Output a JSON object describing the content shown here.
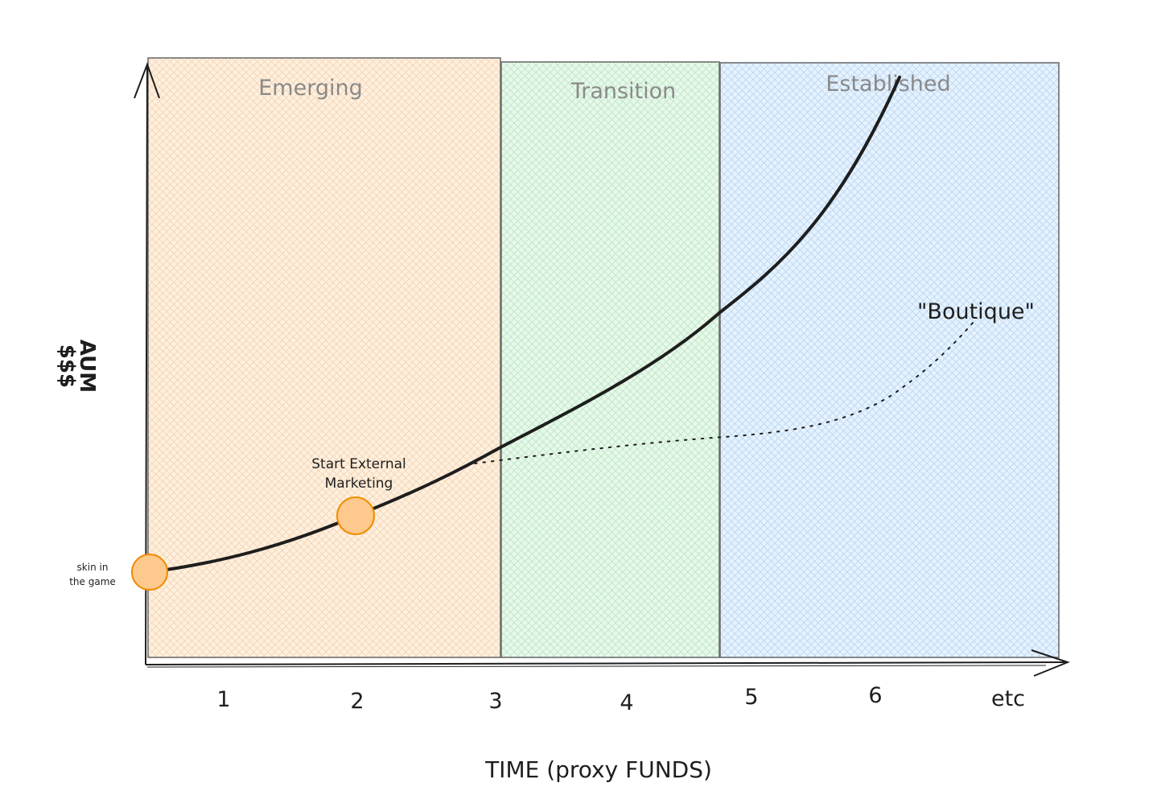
{
  "zones": [
    {
      "title": "Emerging",
      "fill": "#fdecd8",
      "hatch": "#f5c89a"
    },
    {
      "title": "Transition",
      "fill": "#e3f6e6",
      "hatch": "#a9e0b4"
    },
    {
      "title": "Established",
      "fill": "#e1effc",
      "hatch": "#a7cdf0"
    }
  ],
  "axes": {
    "y_title_line1": "AUM",
    "y_title_line2": "$$$",
    "x_title": "TIME (proxy FUNDS)",
    "x_ticks": [
      "1",
      "2",
      "3",
      "4",
      "5",
      "6",
      "etc"
    ]
  },
  "annotations": {
    "start_marker_line1": "skin in",
    "start_marker_line2": "the game",
    "marketing_line1": "Start External",
    "marketing_line2": "Marketing",
    "boutique_label": "\"Boutique\""
  },
  "colors": {
    "curve": "#1e1e1e",
    "marker_fill": "#fdc98d",
    "marker_stroke": "#f08c00",
    "zone_border": "#6e6e6e"
  }
}
